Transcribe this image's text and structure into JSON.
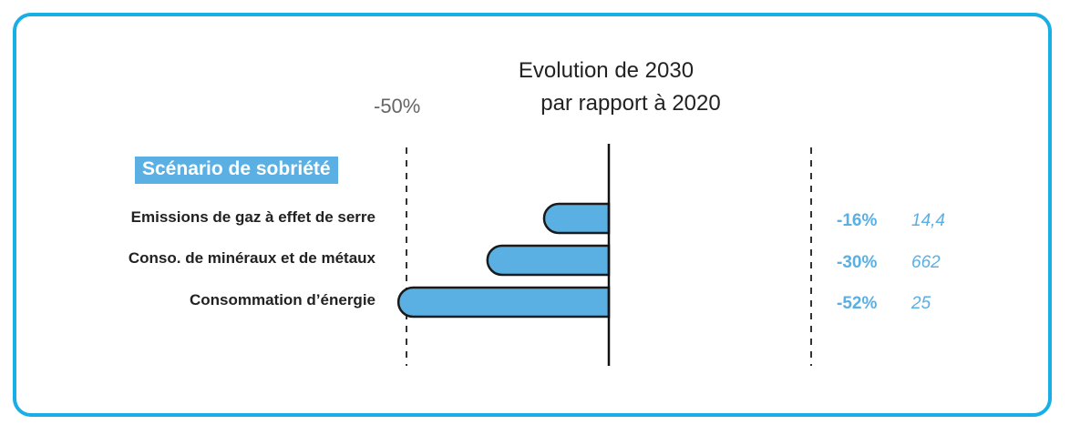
{
  "chart_data": {
    "type": "bar",
    "title_line1": "Evolution de 2030",
    "title_line2": "par rapport à 2020",
    "reference_label": "-50%",
    "scenario_label": "Scénario de sobriété",
    "categories": [
      "Emissions de gaz à effet de serre",
      "Conso. de minéraux et de métaux",
      "Consommation d’énergie"
    ],
    "values": [
      -16,
      -30,
      -52
    ],
    "value_labels": [
      "-16%",
      "-30%",
      "-52%"
    ],
    "absolute_labels": [
      "14,4",
      "662",
      "25"
    ],
    "xlim": [
      -52,
      0
    ],
    "reference_lines": [
      -50,
      50
    ],
    "grid": false
  },
  "colors": {
    "bar": "#5aafe3",
    "frame": "#1aaee6",
    "accent_text": "#5aafe3"
  }
}
